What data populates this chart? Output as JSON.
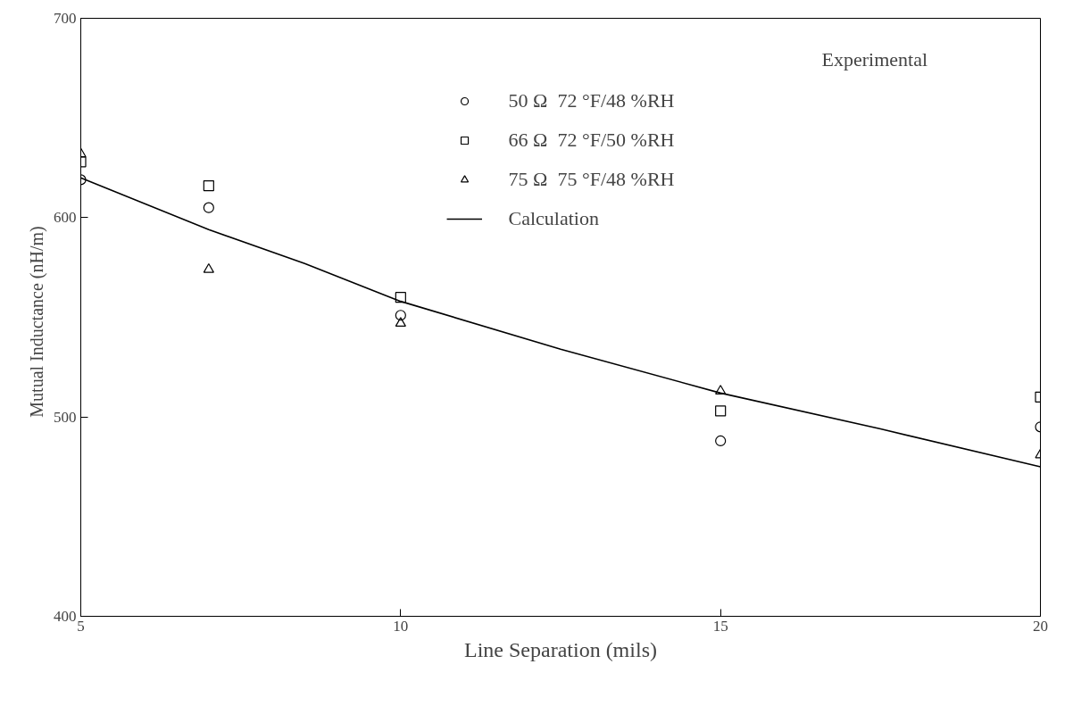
{
  "chart_data": {
    "type": "scatter",
    "xlabel": "Line Separation (mils)",
    "ylabel": "Mutual Inductance   (nH/m)",
    "xlim": [
      5,
      20
    ],
    "ylim": [
      400,
      700
    ],
    "xticks": [
      5,
      10,
      15,
      20
    ],
    "yticks": [
      400,
      500,
      600,
      700
    ],
    "grid": false,
    "legend": "top",
    "annotations": [
      "Experimental"
    ],
    "series": [
      {
        "name": "50 Ω  72 °F/48 %RH",
        "color": "#000000",
        "marker": "circle",
        "x": [
          5,
          7,
          10,
          15,
          20
        ],
        "values": [
          619,
          605,
          551,
          488,
          495
        ]
      },
      {
        "name": "66 Ω  72 °F/50 %RH",
        "color": "#000000",
        "marker": "square",
        "x": [
          5,
          7,
          10,
          15,
          20
        ],
        "values": [
          628,
          616,
          560,
          503,
          510
        ]
      },
      {
        "name": "75 Ω  75 °F/48 %RH",
        "color": "#000000",
        "marker": "triangle",
        "x": [
          5,
          7,
          10,
          15,
          20
        ],
        "values": [
          632,
          574,
          547,
          513,
          481
        ]
      },
      {
        "name": "Calculation",
        "type": "line",
        "color": "#000000",
        "marker": "none",
        "line_style": "solid",
        "x": [
          5,
          7,
          8.5,
          10,
          12.5,
          15,
          17.5,
          20
        ],
        "values": [
          620,
          594,
          577,
          558,
          534,
          512,
          494,
          475
        ]
      }
    ]
  }
}
